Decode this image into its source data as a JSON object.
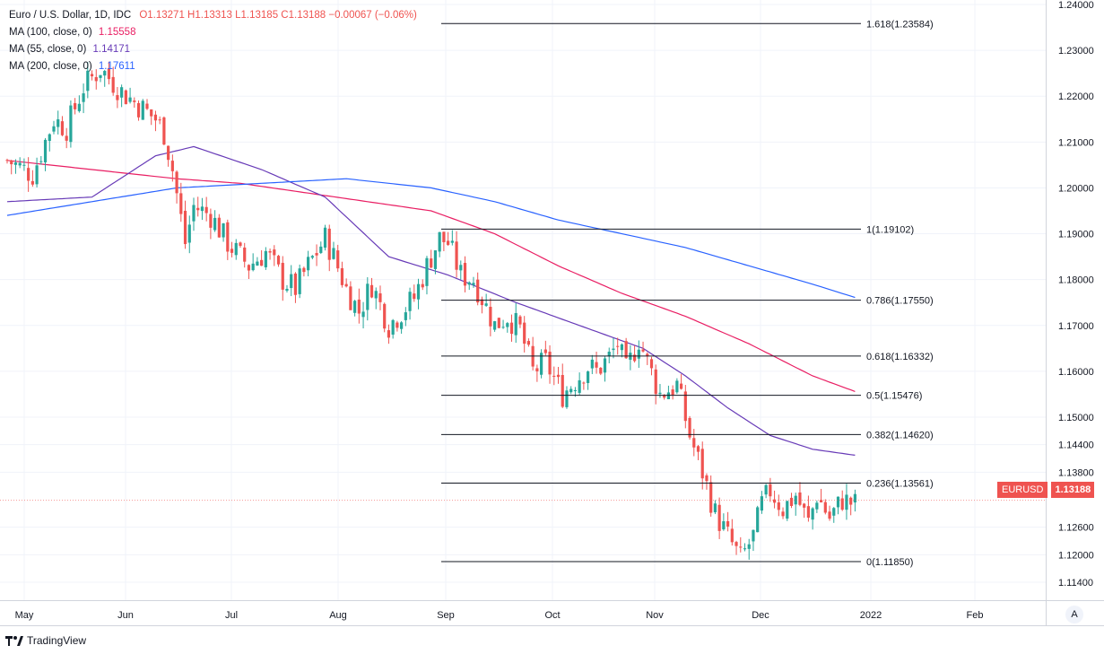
{
  "chart_data": {
    "type": "candlestick",
    "symbol": "EURUSD",
    "title": "Euro / U.S. Dollar, 1D, IDC",
    "ohlc_label": {
      "o": "O1.13271",
      "h": "H1.13313",
      "l": "L1.13185",
      "c": "C1.13188",
      "chg": "−0.00067 (−0.06%)"
    },
    "indicators": [
      {
        "label": "MA (100, close, 0)",
        "value": "1.15558",
        "color": "#e91e63"
      },
      {
        "label": "MA (55, close, 0)",
        "value": "1.14171",
        "color": "#673ab7"
      },
      {
        "label": "MA (200, close, 0)",
        "value": "1.17611",
        "color": "#2962ff"
      }
    ],
    "last_price": "1.13188",
    "ylim": [
      1.1095,
      1.2405
    ],
    "y_ticks": [
      "1.24000",
      "1.23000",
      "1.22000",
      "1.21000",
      "1.20000",
      "1.19000",
      "1.18000",
      "1.17000",
      "1.16000",
      "1.15000",
      "1.14400",
      "1.13800",
      "1.12600",
      "1.12000",
      "1.11400"
    ],
    "y_tick_values": [
      1.24,
      1.23,
      1.22,
      1.21,
      1.2,
      1.19,
      1.18,
      1.17,
      1.16,
      1.15,
      1.144,
      1.138,
      1.126,
      1.12,
      1.114
    ],
    "x_ticks": [
      "May",
      "Jun",
      "Jul",
      "Aug",
      "Sep",
      "Oct",
      "Nov",
      "Dec",
      "2022",
      "Feb"
    ],
    "fibonacci": [
      {
        "label": "1.618(1.23584)",
        "value": 1.23584
      },
      {
        "label": "1(1.19102)",
        "value": 1.19102
      },
      {
        "label": "0.786(1.17550)",
        "value": 1.1755
      },
      {
        "label": "0.618(1.16332)",
        "value": 1.16332
      },
      {
        "label": "0.5(1.15476)",
        "value": 1.15476
      },
      {
        "label": "0.382(1.14620)",
        "value": 1.1462
      },
      {
        "label": "0.236(1.13561)",
        "value": 1.13561
      },
      {
        "label": "0(1.11850)",
        "value": 1.1185
      }
    ],
    "candle_anchors": [
      [
        0,
        1.206
      ],
      [
        6,
        1.203
      ],
      [
        11,
        1.215
      ],
      [
        14,
        1.213
      ],
      [
        18,
        1.222
      ],
      [
        22,
        1.226
      ],
      [
        27,
        1.221
      ],
      [
        31,
        1.218
      ],
      [
        35,
        1.215
      ],
      [
        37,
        1.212
      ],
      [
        39,
        1.204
      ],
      [
        42,
        1.188
      ],
      [
        44,
        1.196
      ],
      [
        48,
        1.194
      ],
      [
        52,
        1.188
      ],
      [
        57,
        1.183
      ],
      [
        61,
        1.186
      ],
      [
        65,
        1.18
      ],
      [
        68,
        1.178
      ],
      [
        71,
        1.183
      ],
      [
        75,
        1.189
      ],
      [
        77,
        1.185
      ],
      [
        80,
        1.178
      ],
      [
        83,
        1.173
      ],
      [
        86,
        1.179
      ],
      [
        90,
        1.17
      ],
      [
        93,
        1.173
      ],
      [
        96,
        1.176
      ],
      [
        99,
        1.183
      ],
      [
        102,
        1.189
      ],
      [
        104,
        1.188
      ],
      [
        107,
        1.181
      ],
      [
        110,
        1.18
      ],
      [
        112,
        1.176
      ],
      [
        115,
        1.17
      ],
      [
        118,
        1.172
      ],
      [
        121,
        1.169
      ],
      [
        124,
        1.16
      ],
      [
        127,
        1.162
      ],
      [
        131,
        1.155
      ],
      [
        134,
        1.158
      ],
      [
        137,
        1.161
      ],
      [
        139,
        1.16
      ],
      [
        142,
        1.163
      ],
      [
        144,
        1.166
      ],
      [
        146,
        1.16
      ],
      [
        149,
        1.167
      ],
      [
        151,
        1.162
      ],
      [
        154,
        1.155
      ],
      [
        158,
        1.157
      ],
      [
        161,
        1.146
      ],
      [
        164,
        1.138
      ],
      [
        167,
        1.129
      ],
      [
        170,
        1.124
      ],
      [
        173,
        1.119
      ],
      [
        176,
        1.124
      ],
      [
        178,
        1.131
      ],
      [
        180,
        1.134
      ],
      [
        183,
        1.13
      ],
      [
        186,
        1.133
      ],
      [
        189,
        1.127
      ],
      [
        191,
        1.133
      ],
      [
        194,
        1.128
      ],
      [
        197,
        1.132
      ],
      [
        200,
        1.131
      ]
    ],
    "ma55": [
      [
        0,
        1.197
      ],
      [
        20,
        1.198
      ],
      [
        35,
        1.207
      ],
      [
        44,
        1.209
      ],
      [
        60,
        1.204
      ],
      [
        75,
        1.198
      ],
      [
        90,
        1.185
      ],
      [
        104,
        1.181
      ],
      [
        120,
        1.175
      ],
      [
        135,
        1.17
      ],
      [
        150,
        1.165
      ],
      [
        160,
        1.159
      ],
      [
        170,
        1.152
      ],
      [
        180,
        1.146
      ],
      [
        190,
        1.143
      ],
      [
        200,
        1.1417
      ]
    ],
    "ma100": [
      [
        0,
        1.206
      ],
      [
        20,
        1.204
      ],
      [
        40,
        1.202
      ],
      [
        55,
        1.201
      ],
      [
        70,
        1.199
      ],
      [
        85,
        1.197
      ],
      [
        100,
        1.195
      ],
      [
        115,
        1.19
      ],
      [
        130,
        1.183
      ],
      [
        145,
        1.177
      ],
      [
        160,
        1.172
      ],
      [
        175,
        1.166
      ],
      [
        190,
        1.159
      ],
      [
        200,
        1.1556
      ]
    ],
    "ma200": [
      [
        0,
        1.194
      ],
      [
        20,
        1.197
      ],
      [
        40,
        1.2
      ],
      [
        60,
        1.201
      ],
      [
        80,
        1.202
      ],
      [
        100,
        1.2
      ],
      [
        115,
        1.197
      ],
      [
        130,
        1.193
      ],
      [
        145,
        1.19
      ],
      [
        160,
        1.187
      ],
      [
        175,
        1.183
      ],
      [
        190,
        1.179
      ],
      [
        200,
        1.1761
      ]
    ]
  },
  "brand": {
    "name": "TradingView"
  },
  "scale_button": {
    "label": "A"
  }
}
